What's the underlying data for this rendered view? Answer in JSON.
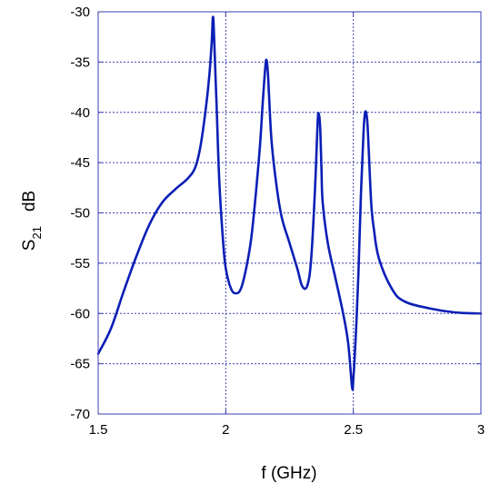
{
  "chart_data": {
    "type": "line",
    "xlabel": "f (GHz)",
    "ylabel_main": "S",
    "ylabel_sub": "21",
    "ylabel_unit": "dB",
    "xlim": [
      1.5,
      3
    ],
    "ylim": [
      -70,
      -30
    ],
    "xticks": [
      1.5,
      2,
      2.5,
      3
    ],
    "xtick_labels": [
      "1.5",
      "2",
      "2.5",
      "3"
    ],
    "yticks": [
      -70,
      -65,
      -60,
      -55,
      -50,
      -45,
      -40,
      -35,
      -30
    ],
    "ytick_labels": [
      "-70",
      "-65",
      "-60",
      "-55",
      "-50",
      "-45",
      "-40",
      "-35",
      "-30"
    ],
    "grid": true,
    "colors": {
      "series": "#0b1fb5",
      "axes": "#3b3fb0",
      "grid": "#3b3fb0"
    },
    "series": [
      {
        "x": [
          1.5,
          1.55,
          1.6,
          1.65,
          1.7,
          1.75,
          1.8,
          1.85,
          1.88,
          1.9,
          1.92,
          1.935,
          1.945,
          1.95,
          1.955,
          1.965,
          1.975,
          1.99,
          2.0,
          2.02,
          2.04,
          2.06,
          2.08,
          2.1,
          2.12,
          2.135,
          2.145,
          2.155,
          2.16,
          2.165,
          2.17,
          2.18,
          2.2,
          2.22,
          2.25,
          2.28,
          2.3,
          2.32,
          2.335,
          2.35,
          2.36,
          2.365,
          2.37,
          2.375,
          2.38,
          2.4,
          2.43,
          2.46,
          2.48,
          2.495,
          2.5,
          2.51,
          2.52,
          2.53,
          2.54,
          2.545,
          2.55,
          2.555,
          2.56,
          2.57,
          2.58,
          2.6,
          2.65,
          2.7,
          2.8,
          2.9,
          3.0
        ],
        "y": [
          -64,
          -61.5,
          -57.8,
          -54.3,
          -51.2,
          -49,
          -47.7,
          -46.6,
          -45.5,
          -43.5,
          -40,
          -36.5,
          -33,
          -30.5,
          -33,
          -40,
          -47,
          -53,
          -55.5,
          -57.5,
          -58,
          -57.5,
          -55.5,
          -52.5,
          -47.5,
          -43,
          -39,
          -35.5,
          -34.8,
          -36,
          -38.5,
          -43,
          -47.5,
          -50.5,
          -53,
          -55.5,
          -57.3,
          -57.2,
          -54.5,
          -47.5,
          -41,
          -40.2,
          -41.5,
          -45.5,
          -49,
          -53,
          -56.5,
          -60,
          -63,
          -67.3,
          -66.5,
          -62,
          -56,
          -48,
          -42,
          -40.2,
          -40,
          -41,
          -43.5,
          -49,
          -51.5,
          -54.5,
          -57.5,
          -58.8,
          -59.5,
          -59.9,
          -60
        ]
      }
    ]
  }
}
